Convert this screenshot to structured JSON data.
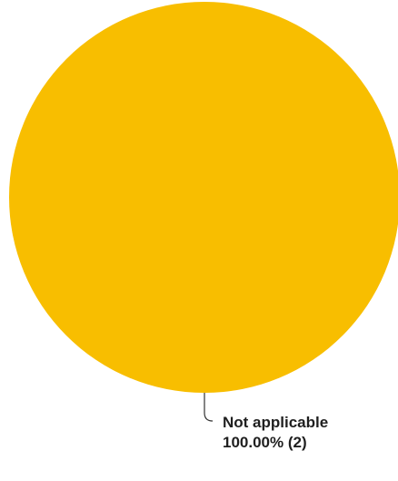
{
  "chart_data": {
    "type": "pie",
    "slices": [
      {
        "label": "Not applicable",
        "value": 2,
        "value_label": "100.00% (2)",
        "color": "#F8BE00"
      }
    ],
    "legend": "none"
  }
}
